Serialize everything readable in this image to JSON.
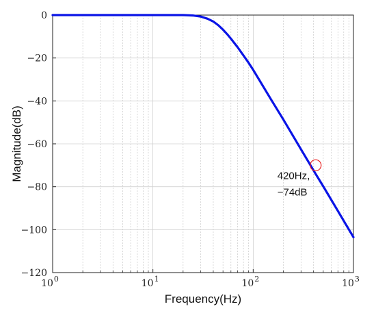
{
  "chart_data": {
    "type": "line",
    "title": "",
    "xlabel": "Frequency(Hz)",
    "ylabel": "Magnitude(dB)",
    "x_scale": "log",
    "xlim": [
      1,
      1000
    ],
    "ylim": [
      -120,
      0
    ],
    "grid": true,
    "x_ticks": [
      {
        "base": "10",
        "exp": "0"
      },
      {
        "base": "10",
        "exp": "1"
      },
      {
        "base": "10",
        "exp": "2"
      },
      {
        "base": "10",
        "exp": "3"
      }
    ],
    "y_ticks": [
      "0",
      "−20",
      "−40",
      "−60",
      "−80",
      "−100",
      "−120"
    ],
    "y_tick_values": [
      0,
      -20,
      -40,
      -60,
      -80,
      -100,
      -120
    ],
    "series": [
      {
        "color": "#0a14e6",
        "x": [
          1,
          2,
          5,
          10,
          15,
          20,
          25,
          30,
          35,
          40,
          45,
          50,
          55,
          60,
          70,
          80,
          90,
          100,
          150,
          200,
          300,
          420,
          500,
          700,
          1000
        ],
        "y": [
          0,
          0,
          0,
          0,
          0,
          0,
          -0.2,
          -0.7,
          -1.7,
          -3.0,
          -4.8,
          -6.8,
          -8.9,
          -11.0,
          -15.0,
          -18.8,
          -22.2,
          -25.5,
          -39.2,
          -48.7,
          -62.6,
          -74.0,
          -79.8,
          -91.3,
          -103.5
        ]
      }
    ],
    "annotation": {
      "x": 420,
      "y": -70,
      "line1": "420Hz,",
      "line2": "−74dB",
      "marker_color": "#e82020"
    }
  }
}
